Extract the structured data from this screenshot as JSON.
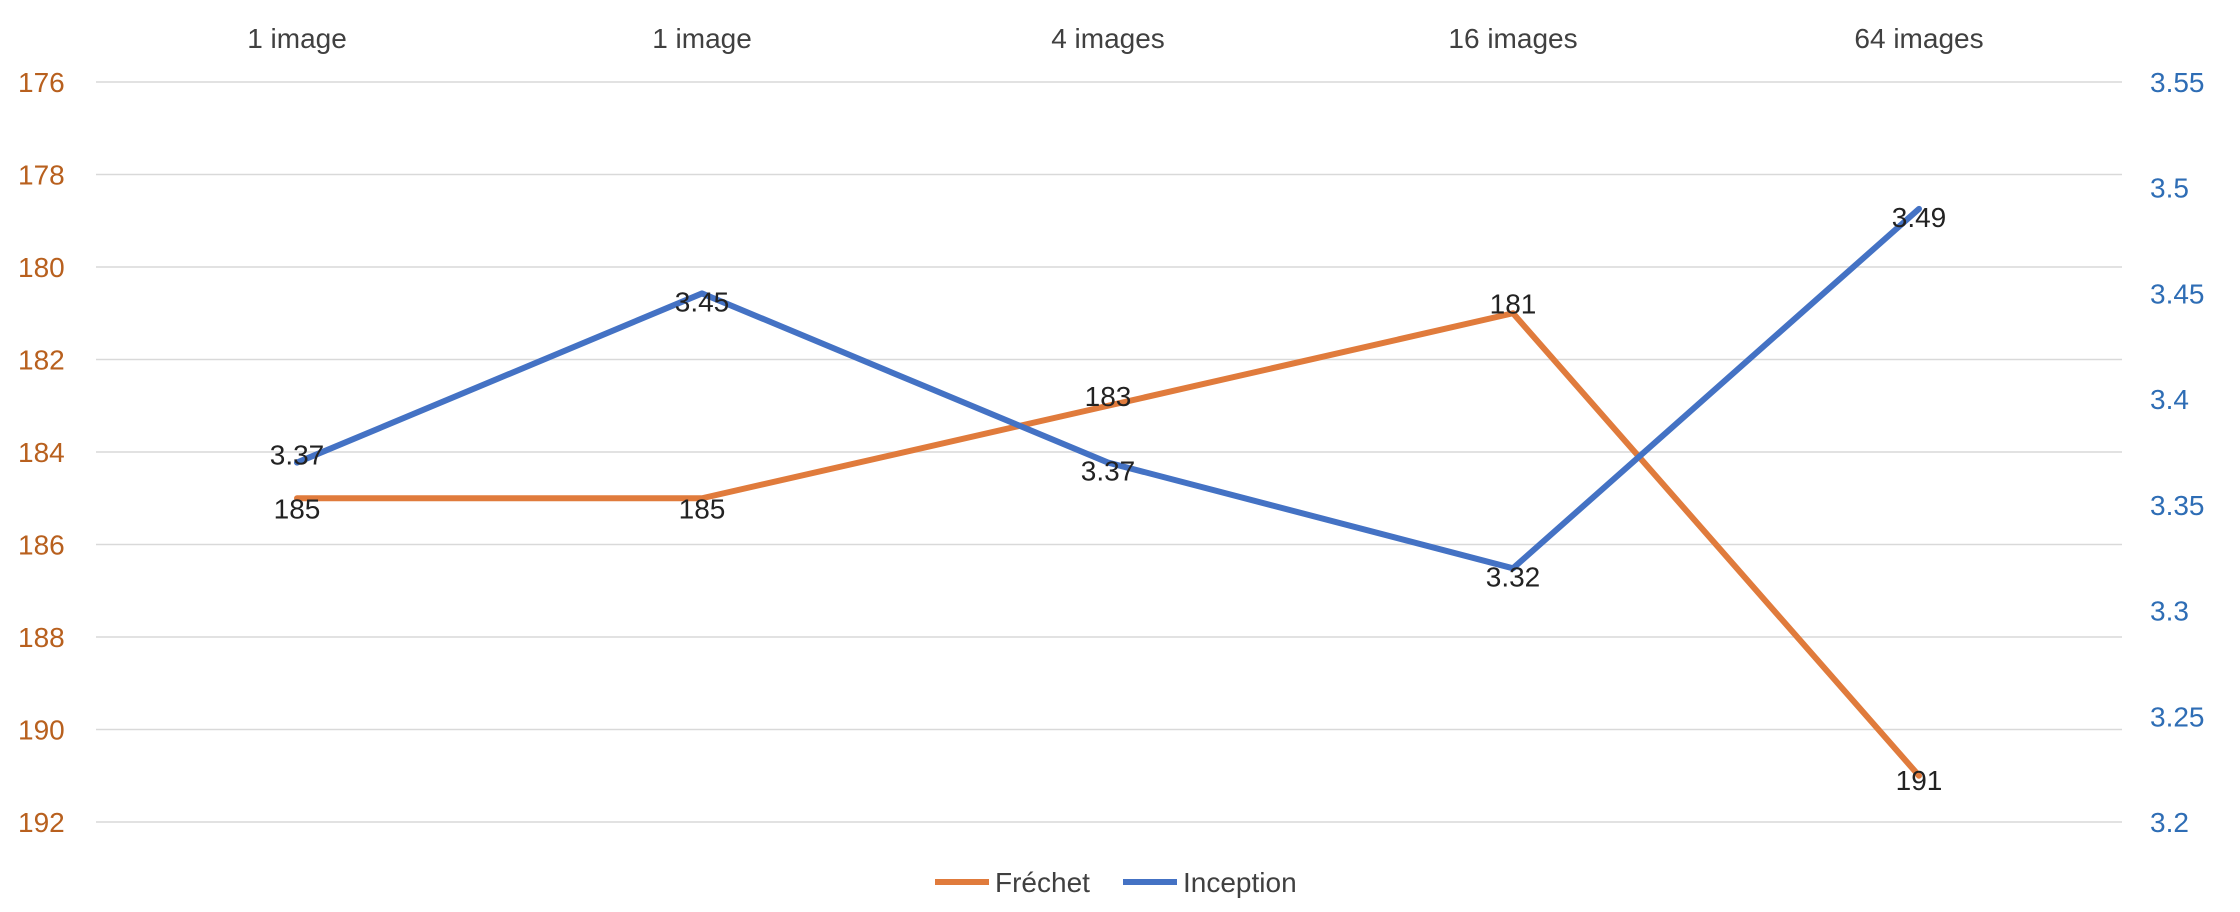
{
  "chart_data": {
    "type": "line",
    "categories": [
      "1 image",
      "1 image",
      "4 images",
      "16 images",
      "64 images"
    ],
    "y_left": {
      "ticks": [
        "176",
        "178",
        "180",
        "182",
        "184",
        "186",
        "188",
        "190",
        "192"
      ],
      "range": [
        176,
        192
      ],
      "reversed": true,
      "color": "#B8601E"
    },
    "y_right": {
      "ticks": [
        "3.55",
        "3.5",
        "3.45",
        "3.4",
        "3.35",
        "3.3",
        "3.25",
        "3.2"
      ],
      "range": [
        3.2,
        3.55
      ],
      "color": "#2E6DB5"
    },
    "grid": true,
    "legend_position": "bottom",
    "series": [
      {
        "name": "Fréchet",
        "axis": "left",
        "color": "#E07B3C",
        "values": [
          185,
          185,
          183,
          181,
          191
        ],
        "labels": [
          "185",
          "185",
          "183",
          "181",
          "191"
        ]
      },
      {
        "name": "Inception",
        "axis": "right",
        "color": "#4472C4",
        "values": [
          3.37,
          3.45,
          3.37,
          3.32,
          3.49
        ],
        "labels": [
          "3.37",
          "3.45",
          "3.37",
          "3.32",
          "3.49"
        ]
      }
    ]
  }
}
